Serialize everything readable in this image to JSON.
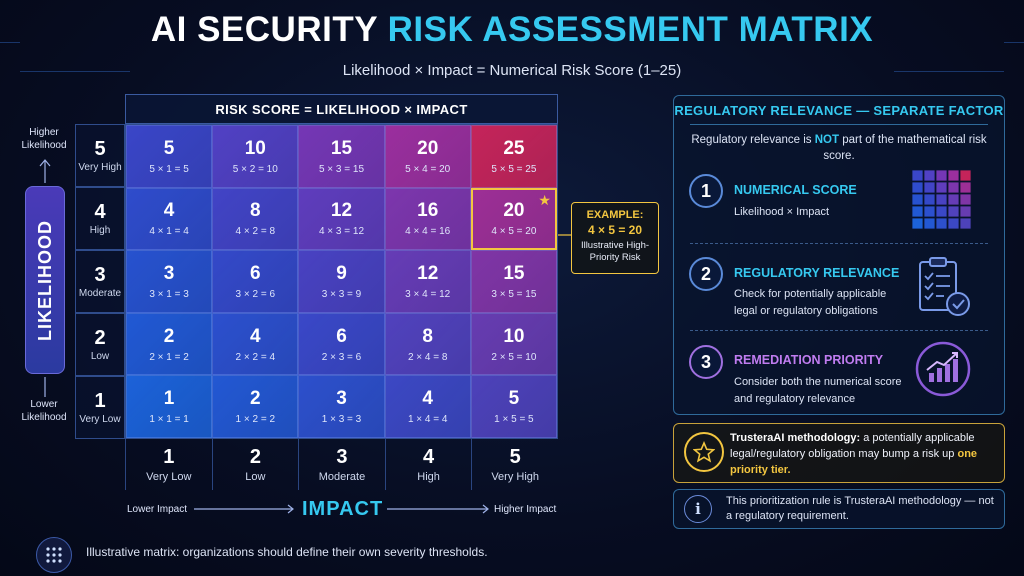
{
  "title": {
    "part1": "AI SECURITY",
    "part2": "RISK ASSESSMENT MATRIX"
  },
  "subtitle": "Likelihood × Impact = Numerical Risk Score (1–25)",
  "matrix": {
    "header": "RISK SCORE = LIKELIHOOD × IMPACT",
    "rows": [
      {
        "num": "5",
        "label": "Very High",
        "cells": [
          {
            "score": "5",
            "formula": "5 × 1 = 5",
            "color": "#3a46c8"
          },
          {
            "score": "10",
            "formula": "5 × 2 = 10",
            "color": "#5141c4"
          },
          {
            "score": "15",
            "formula": "5 × 3 = 15",
            "color": "#7537b5"
          },
          {
            "score": "20",
            "formula": "5 × 4 = 20",
            "color": "#9b2f9e"
          },
          {
            "score": "25",
            "formula": "5 × 5 = 25",
            "color": "#c5245a"
          }
        ]
      },
      {
        "num": "4",
        "label": "High",
        "cells": [
          {
            "score": "4",
            "formula": "4 × 1 = 4",
            "color": "#2f4ccc"
          },
          {
            "score": "8",
            "formula": "4 × 2 = 8",
            "color": "#4244c6"
          },
          {
            "score": "12",
            "formula": "4 × 3 = 12",
            "color": "#5f3dbd"
          },
          {
            "score": "16",
            "formula": "4 × 4 = 16",
            "color": "#7d36ad"
          },
          {
            "score": "20",
            "formula": "4 × 5 = 20",
            "color": "#9d2f96"
          }
        ]
      },
      {
        "num": "3",
        "label": "Moderate",
        "cells": [
          {
            "score": "3",
            "formula": "3 × 1 = 3",
            "color": "#2752cf"
          },
          {
            "score": "6",
            "formula": "3 × 2 = 6",
            "color": "#3449c9"
          },
          {
            "score": "9",
            "formula": "3 × 3 = 9",
            "color": "#4942c2"
          },
          {
            "score": "12",
            "formula": "3 × 4 = 12",
            "color": "#663cb6"
          },
          {
            "score": "15",
            "formula": "3 × 5 = 15",
            "color": "#8035a6"
          }
        ]
      },
      {
        "num": "2",
        "label": "Low",
        "cells": [
          {
            "score": "2",
            "formula": "2 × 1 = 2",
            "color": "#2159d4"
          },
          {
            "score": "4",
            "formula": "2 × 2 = 4",
            "color": "#2c50ce"
          },
          {
            "score": "6",
            "formula": "2 × 3 = 6",
            "color": "#3a48c8"
          },
          {
            "score": "8",
            "formula": "2 × 4 = 8",
            "color": "#5142bd"
          },
          {
            "score": "10",
            "formula": "2 × 5 = 10",
            "color": "#673cb1"
          }
        ]
      },
      {
        "num": "1",
        "label": "Very Low",
        "cells": [
          {
            "score": "1",
            "formula": "1 × 1 = 1",
            "color": "#1c62d9"
          },
          {
            "score": "2",
            "formula": "1 × 2 = 2",
            "color": "#2358d3"
          },
          {
            "score": "3",
            "formula": "1 × 3 = 3",
            "color": "#2d50cc"
          },
          {
            "score": "4",
            "formula": "1 × 4 = 4",
            "color": "#3c48c4"
          },
          {
            "score": "5",
            "formula": "1 × 5 = 5",
            "color": "#4d42ba"
          }
        ]
      }
    ],
    "highlight": {
      "row": 1,
      "col": 4
    },
    "columns": [
      {
        "num": "1",
        "label": "Very Low"
      },
      {
        "num": "2",
        "label": "Low"
      },
      {
        "num": "3",
        "label": "Moderate"
      },
      {
        "num": "4",
        "label": "High"
      },
      {
        "num": "5",
        "label": "Very High"
      }
    ]
  },
  "axis": {
    "likelihood": "LIKELIHOOD",
    "higher_likelihood": "Higher Likelihood",
    "lower_likelihood": "Lower Likelihood",
    "impact": "IMPACT",
    "lower_impact": "Lower Impact",
    "higher_impact": "Higher Impact"
  },
  "example": {
    "heading": "EXAMPLE:",
    "equation": "4 × 5 = 20",
    "description": "Illustrative High-Priority Risk"
  },
  "panel": {
    "title": "REGULATORY RELEVANCE — SEPARATE FACTOR",
    "intro_before": "Regulatory relevance is ",
    "intro_not": "NOT",
    "intro_after": " part of the mathematical risk score.",
    "steps": [
      {
        "num": "1",
        "title": "NUMERICAL SCORE",
        "desc": "Likelihood × Impact",
        "color": "#36c9f0",
        "icon": "mini-matrix-icon"
      },
      {
        "num": "2",
        "title": "REGULATORY RELEVANCE",
        "desc": "Check for potentially applicable legal or regulatory obligations",
        "color": "#36c9f0",
        "icon": "clipboard-check-icon"
      },
      {
        "num": "3",
        "title": "REMEDIATION PRIORITY",
        "desc": "Consider both the numerical score and regulatory relevance",
        "color": "#c07cf0",
        "icon": "trend-chart-icon"
      }
    ]
  },
  "methodology": {
    "lead": "TrusteraAI methodology:",
    "body": " a potentially applicable legal/regulatory obligation may bump a risk up ",
    "emph": "one priority tier.",
    "icon": "star-icon"
  },
  "note": {
    "text": "This prioritization rule is TrusteraAI methodology — not a regulatory requirement.",
    "icon": "info-icon"
  },
  "footer": {
    "text": "Illustrative matrix: organizations should define their own severity thresholds.",
    "icon": "grid-dots-icon"
  }
}
